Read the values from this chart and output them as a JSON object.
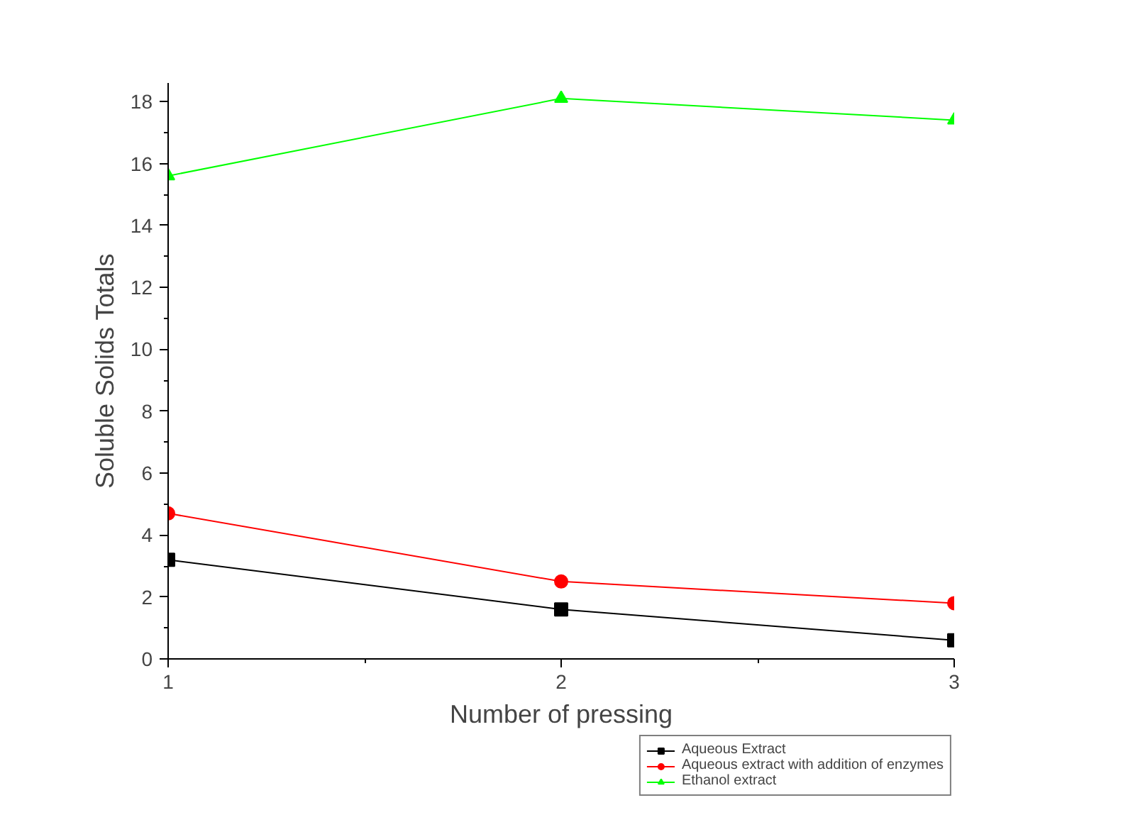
{
  "chart_data": {
    "type": "line",
    "xlabel": "Number of pressing",
    "ylabel": "Soluble Solids Totals",
    "x": [
      1,
      2,
      3
    ],
    "xlim": [
      1,
      3
    ],
    "ylim": [
      0,
      18.6
    ],
    "xticks": [
      1,
      {
        "value": 1.5,
        "label": null
      },
      2,
      {
        "value": 2.5,
        "label": null
      },
      3
    ],
    "yticks": [
      0,
      {
        "value": 1,
        "label": null
      },
      2,
      {
        "value": 3,
        "label": null
      },
      4,
      {
        "value": 5,
        "label": null
      },
      6,
      {
        "value": 7,
        "label": null
      },
      8,
      {
        "value": 9,
        "label": null
      },
      10,
      {
        "value": 11,
        "label": null
      },
      12,
      {
        "value": 13,
        "label": null
      },
      14,
      {
        "value": 15,
        "label": null
      },
      16,
      {
        "value": 17,
        "label": null
      },
      18
    ],
    "grid": false,
    "legend": "bottom right",
    "line_style": "solid",
    "series": [
      {
        "name": "Aqueous Extract",
        "color": "#000000",
        "marker": "square",
        "values": [
          3.2,
          1.6,
          0.6
        ]
      },
      {
        "name": "Aqueous extract with addition of enzymes",
        "color": "#ff0000",
        "marker": "circle",
        "values": [
          4.7,
          2.5,
          1.8
        ]
      },
      {
        "name": "Ethanol extract",
        "color": "#00ff00",
        "marker": "triangle",
        "values": [
          15.6,
          18.1,
          17.4
        ]
      }
    ]
  }
}
